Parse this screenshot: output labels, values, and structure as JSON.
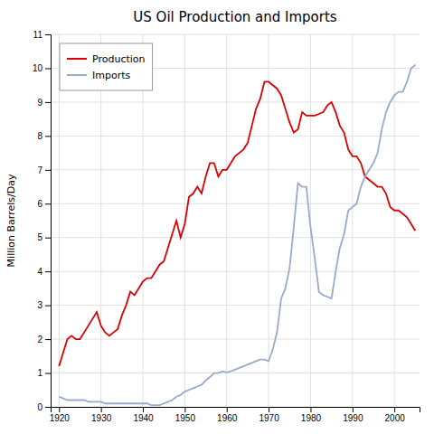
{
  "chart_data": {
    "type": "line",
    "title": "US Oil Production and Imports",
    "ylabel": "Million Barrels/Day",
    "xlim": [
      1918,
      2006
    ],
    "ylim": [
      0,
      11
    ],
    "xticks": [
      1920,
      1930,
      1940,
      1950,
      1960,
      1970,
      1980,
      1990,
      2000
    ],
    "yticks": [
      0,
      1,
      2,
      3,
      4,
      5,
      6,
      7,
      8,
      9,
      10,
      11
    ],
    "grid": true,
    "legend": "upper left",
    "x": [
      1920,
      1921,
      1922,
      1923,
      1924,
      1925,
      1926,
      1927,
      1928,
      1929,
      1930,
      1931,
      1932,
      1933,
      1934,
      1935,
      1936,
      1937,
      1938,
      1939,
      1940,
      1941,
      1942,
      1943,
      1944,
      1945,
      1946,
      1947,
      1948,
      1949,
      1950,
      1951,
      1952,
      1953,
      1954,
      1955,
      1956,
      1957,
      1958,
      1959,
      1960,
      1961,
      1962,
      1963,
      1964,
      1965,
      1966,
      1967,
      1968,
      1969,
      1970,
      1971,
      1972,
      1973,
      1974,
      1975,
      1976,
      1977,
      1978,
      1979,
      1980,
      1981,
      1982,
      1983,
      1984,
      1985,
      1986,
      1987,
      1988,
      1989,
      1990,
      1991,
      1992,
      1993,
      1994,
      1995,
      1996,
      1997,
      1998,
      1999,
      2000,
      2001,
      2002,
      2003,
      2004,
      2005
    ],
    "series": [
      {
        "name": "Production",
        "color": "#dd0000",
        "values": [
          1.2,
          1.6,
          2.0,
          2.1,
          2.0,
          2.0,
          2.2,
          2.4,
          2.6,
          2.8,
          2.4,
          2.2,
          2.1,
          2.2,
          2.3,
          2.7,
          3.0,
          3.4,
          3.3,
          3.5,
          3.7,
          3.8,
          3.8,
          4.0,
          4.2,
          4.3,
          4.7,
          5.1,
          5.5,
          5.0,
          5.4,
          6.2,
          6.3,
          6.5,
          6.3,
          6.8,
          7.2,
          7.2,
          6.8,
          7.0,
          7.0,
          7.2,
          7.4,
          7.5,
          7.6,
          7.8,
          8.3,
          8.8,
          9.1,
          9.6,
          9.6,
          9.5,
          9.4,
          9.2,
          8.8,
          8.4,
          8.1,
          8.2,
          8.7,
          8.6,
          8.6,
          8.6,
          8.65,
          8.7,
          8.9,
          9.0,
          8.7,
          8.3,
          8.1,
          7.6,
          7.4,
          7.4,
          7.2,
          6.8,
          6.7,
          6.6,
          6.5,
          6.5,
          6.3,
          5.9,
          5.8,
          5.8,
          5.7,
          5.6,
          5.4,
          5.2
        ]
      },
      {
        "name": "Imports",
        "color": "#99aacc",
        "values": [
          0.3,
          0.25,
          0.2,
          0.2,
          0.2,
          0.2,
          0.2,
          0.15,
          0.15,
          0.15,
          0.15,
          0.1,
          0.1,
          0.1,
          0.1,
          0.1,
          0.1,
          0.1,
          0.1,
          0.1,
          0.1,
          0.1,
          0.05,
          0.05,
          0.05,
          0.1,
          0.15,
          0.2,
          0.3,
          0.35,
          0.45,
          0.5,
          0.55,
          0.6,
          0.65,
          0.78,
          0.88,
          1.0,
          1.0,
          1.05,
          1.02,
          1.05,
          1.1,
          1.15,
          1.2,
          1.25,
          1.3,
          1.35,
          1.4,
          1.4,
          1.35,
          1.7,
          2.2,
          3.2,
          3.5,
          4.1,
          5.3,
          6.6,
          6.5,
          6.5,
          5.3,
          4.4,
          3.4,
          3.3,
          3.25,
          3.2,
          4.0,
          4.7,
          5.1,
          5.8,
          5.9,
          6.0,
          6.5,
          6.8,
          7.0,
          7.2,
          7.5,
          8.2,
          8.7,
          9.0,
          9.2,
          9.3,
          9.3,
          9.6,
          10.0,
          10.1
        ]
      }
    ]
  }
}
